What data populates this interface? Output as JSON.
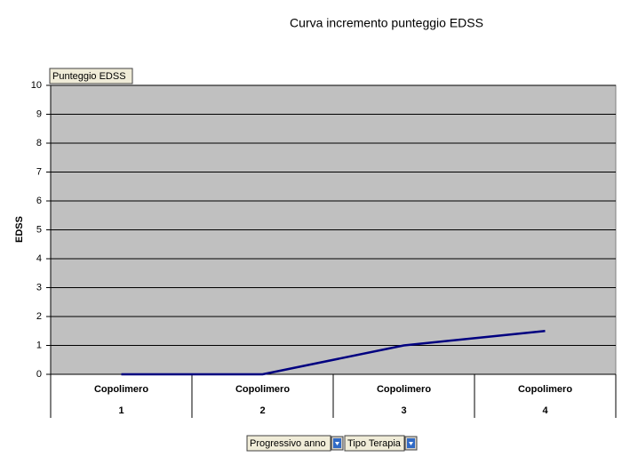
{
  "chart_data": {
    "type": "line",
    "title": "Curva incremento punteggio EDSS",
    "ylabel": "EDSS",
    "categories": [
      "1",
      "2",
      "3",
      "4"
    ],
    "category_groups": [
      "Copolimero",
      "Copolimero",
      "Copolimero",
      "Copolimero"
    ],
    "series": [
      {
        "name": "Punteggio EDSS",
        "color": "#000080",
        "values": [
          0,
          0,
          1,
          1.5
        ]
      }
    ],
    "ylim": [
      0,
      10
    ],
    "yticks": [
      0,
      1,
      2,
      3,
      4,
      5,
      6,
      7,
      8,
      9,
      10
    ],
    "grid": true,
    "plot_background": "#c0c0c0",
    "field_buttons": {
      "data": "Punteggio EDSS",
      "axis": [
        "Progressivo anno",
        "Tipo Terapia"
      ]
    }
  }
}
